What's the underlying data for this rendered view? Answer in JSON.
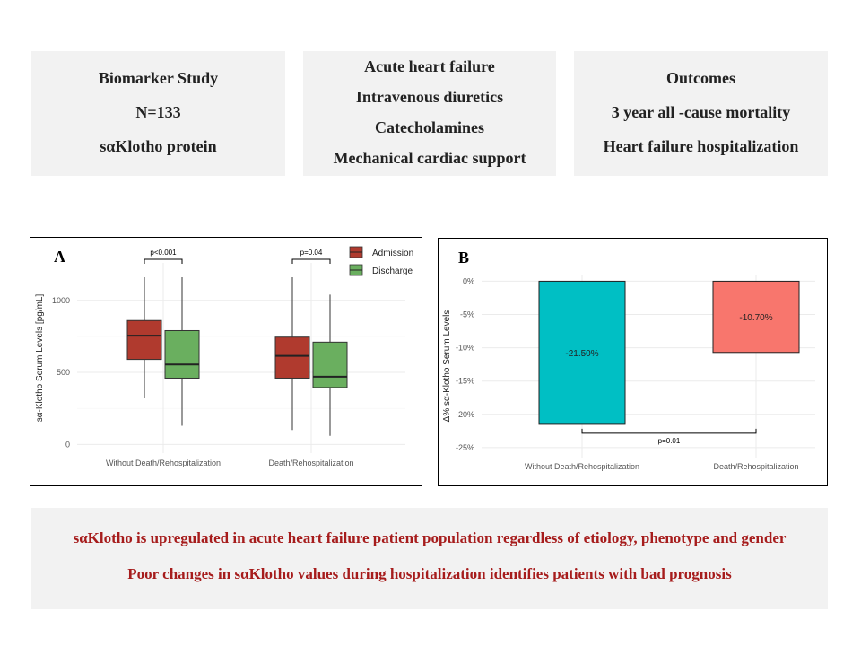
{
  "top_boxes": {
    "study": [
      "Biomarker Study",
      "N=133",
      "sαKlotho protein"
    ],
    "population": [
      "Acute heart failure",
      "Intravenous diuretics",
      "Catecholamines",
      "Mechanical cardiac support"
    ],
    "outcomes": [
      "Outcomes",
      "3 year all -cause mortality",
      "Heart failure hospitalization"
    ]
  },
  "conclusions": {
    "line1": "sαKlotho is upregulated in acute heart failure patient population regardless of etiology, phenotype and gender",
    "line2": "Poor changes  in sαKlotho values during hospitalization identifies patients with bad prognosis"
  },
  "chart_data": [
    {
      "panel": "A",
      "type": "boxplot",
      "ylabel": "sα-Klotho Serum Levels [pg/mL]",
      "categories": [
        "Without Death/Rehospitalization",
        "Death/Rehospitalization"
      ],
      "yticks": [
        0,
        500,
        1000
      ],
      "ylim": [
        -60,
        1260
      ],
      "legend": {
        "position": "top-right"
      },
      "series": [
        {
          "name": "Admission",
          "color": "#b03a2e",
          "boxes": [
            {
              "min": 320,
              "q1": 590,
              "median": 755,
              "q3": 860,
              "max": 1160
            },
            {
              "min": 100,
              "q1": 460,
              "median": 615,
              "q3": 745,
              "max": 1160
            }
          ]
        },
        {
          "name": "Discharge",
          "color": "#6aaf5f",
          "boxes": [
            {
              "min": 130,
              "q1": 460,
              "median": 555,
              "q3": 790,
              "max": 1160
            },
            {
              "min": 60,
              "q1": 395,
              "median": 470,
              "q3": 710,
              "max": 1040
            }
          ]
        }
      ],
      "annotations": [
        {
          "category": 0,
          "text": "p<0.001"
        },
        {
          "category": 1,
          "text": "p=0.04"
        }
      ],
      "grid": true
    },
    {
      "panel": "B",
      "type": "bar",
      "ylabel": "Δ% sα-Klotho Serum Levels",
      "categories": [
        "Without Death/Rehospitalization",
        "Death/Rehospitalization"
      ],
      "values": [
        -21.5,
        -10.7
      ],
      "value_labels": [
        "-21.50%",
        "-10.70%"
      ],
      "colors": [
        "#00bfc4",
        "#f8766d"
      ],
      "yticks": [
        0,
        -5,
        -10,
        -15,
        -20,
        -25
      ],
      "ytick_labels": [
        "0%",
        "-5%",
        "-10%",
        "-15%",
        "-20%",
        "-25%"
      ],
      "ylim": [
        -26.5,
        1
      ],
      "annotation": {
        "text": "p=0.01"
      },
      "grid": true
    }
  ]
}
